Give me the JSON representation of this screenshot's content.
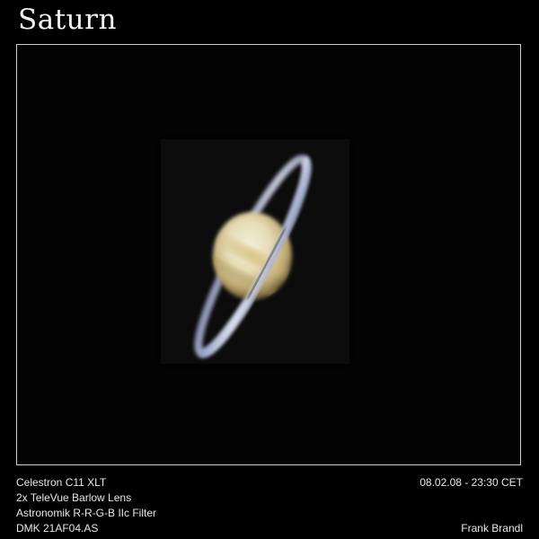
{
  "title": "Saturn",
  "equipment": [
    "Celestron C11 XLT",
    "2x TeleVue Barlow Lens",
    "Astronomik R-R-G-B IIc Filter",
    "DMK 21AF04.AS"
  ],
  "date_time": "08.02.08 - 23:30 CET",
  "author": "Frank Brandl",
  "colors": {
    "background": "#000000",
    "frame_border": "#cfcfcf",
    "planet_light": "#efe8c8",
    "planet_band": "#d8c48e",
    "ring": "#c7d0e8"
  }
}
